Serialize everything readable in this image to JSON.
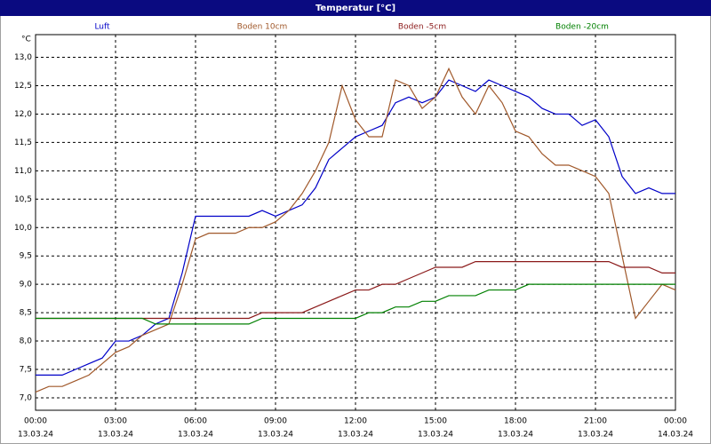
{
  "chart_data": {
    "type": "line",
    "title": "Temperatur [°C]",
    "ylabel": "°C",
    "x": [
      0,
      0.5,
      1,
      1.5,
      2,
      2.5,
      3,
      3.5,
      4,
      4.5,
      5,
      5.5,
      6,
      6.5,
      7,
      7.5,
      8,
      8.5,
      9,
      9.5,
      10,
      10.5,
      11,
      11.5,
      12,
      12.5,
      13,
      13.5,
      14,
      14.5,
      15,
      15.5,
      16,
      16.5,
      17,
      17.5,
      18,
      18.5,
      19,
      19.5,
      20,
      20.5,
      21,
      21.5,
      22,
      22.5,
      23,
      23.5,
      24
    ],
    "series": [
      {
        "name": "Luft",
        "color": "#0000c8",
        "values": [
          7.4,
          7.4,
          7.4,
          7.5,
          7.6,
          7.7,
          8.0,
          8.0,
          8.1,
          8.3,
          8.4,
          9.2,
          10.2,
          10.2,
          10.2,
          10.2,
          10.2,
          10.3,
          10.2,
          10.3,
          10.4,
          10.7,
          11.2,
          11.4,
          11.6,
          11.7,
          11.8,
          12.2,
          12.3,
          12.2,
          12.3,
          12.6,
          12.5,
          12.4,
          12.6,
          12.5,
          12.4,
          12.3,
          12.1,
          12.0,
          12.0,
          11.8,
          11.9,
          11.6,
          10.9,
          10.6,
          10.7,
          10.6,
          10.6
        ]
      },
      {
        "name": "Boden 10cm",
        "color": "#a0582a",
        "values": [
          7.1,
          7.2,
          7.2,
          7.3,
          7.4,
          7.6,
          7.8,
          7.9,
          8.1,
          8.2,
          8.3,
          9.0,
          9.8,
          9.9,
          9.9,
          9.9,
          10.0,
          10.0,
          10.1,
          10.3,
          10.6,
          11.0,
          11.5,
          12.5,
          11.9,
          11.6,
          11.6,
          12.6,
          12.5,
          12.1,
          12.3,
          12.8,
          12.3,
          12.0,
          12.5,
          12.2,
          11.7,
          11.6,
          11.3,
          11.1,
          11.1,
          11.0,
          10.9,
          10.6,
          9.5,
          8.4,
          8.7,
          9.0,
          8.9
        ]
      },
      {
        "name": "Boden -5cm",
        "color": "#8b1a1a",
        "values": [
          8.4,
          8.4,
          8.4,
          8.4,
          8.4,
          8.4,
          8.4,
          8.4,
          8.4,
          8.4,
          8.4,
          8.4,
          8.4,
          8.4,
          8.4,
          8.4,
          8.4,
          8.5,
          8.5,
          8.5,
          8.5,
          8.6,
          8.7,
          8.8,
          8.9,
          8.9,
          9.0,
          9.0,
          9.1,
          9.2,
          9.3,
          9.3,
          9.3,
          9.4,
          9.4,
          9.4,
          9.4,
          9.4,
          9.4,
          9.4,
          9.4,
          9.4,
          9.4,
          9.4,
          9.3,
          9.3,
          9.3,
          9.2,
          9.2
        ]
      },
      {
        "name": "Boden -20cm",
        "color": "#008000",
        "values": [
          8.4,
          8.4,
          8.4,
          8.4,
          8.4,
          8.4,
          8.4,
          8.4,
          8.4,
          8.3,
          8.3,
          8.3,
          8.3,
          8.3,
          8.3,
          8.3,
          8.3,
          8.4,
          8.4,
          8.4,
          8.4,
          8.4,
          8.4,
          8.4,
          8.4,
          8.5,
          8.5,
          8.6,
          8.6,
          8.7,
          8.7,
          8.8,
          8.8,
          8.8,
          8.9,
          8.9,
          8.9,
          9.0,
          9.0,
          9.0,
          9.0,
          9.0,
          9.0,
          9.0,
          9.0,
          9.0,
          9.0,
          9.0,
          9.0
        ]
      }
    ],
    "xlim": [
      0,
      24
    ],
    "xticks": [
      {
        "value": 0,
        "label": "00:00",
        "date": "13.03.24"
      },
      {
        "value": 3,
        "label": "03:00",
        "date": "13.03.24"
      },
      {
        "value": 6,
        "label": "06:00",
        "date": "13.03.24"
      },
      {
        "value": 9,
        "label": "09:00",
        "date": "13.03.24"
      },
      {
        "value": 12,
        "label": "12:00",
        "date": "13.03.24"
      },
      {
        "value": 15,
        "label": "15:00",
        "date": "13.03.24"
      },
      {
        "value": 18,
        "label": "18:00",
        "date": "13.03.24"
      },
      {
        "value": 21,
        "label": "21:00",
        "date": "13.03.24"
      },
      {
        "value": 24,
        "label": "00:00",
        "date": "14.03.24"
      }
    ],
    "ylim": [
      6.78,
      13.4
    ],
    "yticks": [
      {
        "value": 7,
        "label": "7,0"
      },
      {
        "value": 7.5,
        "label": "7,5"
      },
      {
        "value": 8,
        "label": "8,0"
      },
      {
        "value": 8.5,
        "label": "8,5"
      },
      {
        "value": 9,
        "label": "9,0"
      },
      {
        "value": 9.5,
        "label": "9,5"
      },
      {
        "value": 10,
        "label": "10,0"
      },
      {
        "value": 10.5,
        "label": "10,5"
      },
      {
        "value": 11,
        "label": "11,0"
      },
      {
        "value": 11.5,
        "label": "11,5"
      },
      {
        "value": 12,
        "label": "12,0"
      },
      {
        "value": 12.5,
        "label": "12,5"
      },
      {
        "value": 13,
        "label": "13,0"
      }
    ],
    "grid": true
  }
}
